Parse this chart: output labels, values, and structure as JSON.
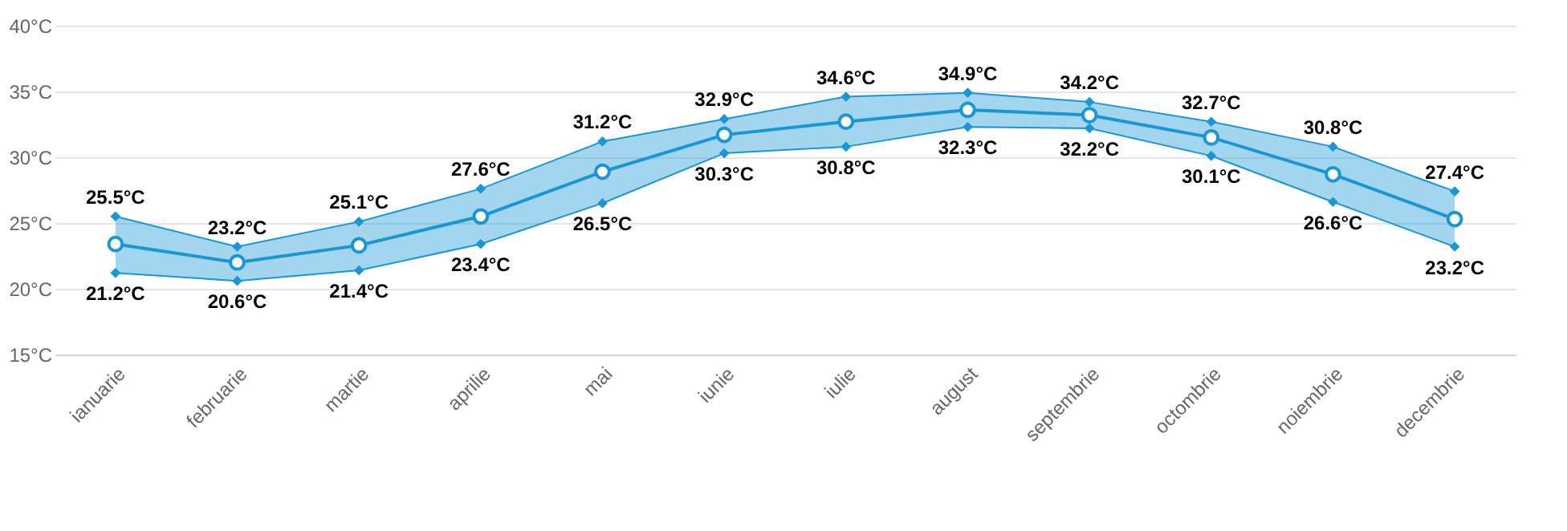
{
  "chart_data": {
    "type": "line",
    "categories": [
      "ianuarie",
      "februarie",
      "martie",
      "aprilie",
      "mai",
      "iunie",
      "iulie",
      "august",
      "septembrie",
      "octombrie",
      "noiembrie",
      "decembrie"
    ],
    "series": [
      {
        "color": "#1a96d4",
        "marker": "diamond",
        "values": [
          25.5,
          23.2,
          25.1,
          27.6,
          31.2,
          32.9,
          34.6,
          34.9,
          34.2,
          32.7,
          30.8,
          27.4
        ],
        "value_labels": [
          "25.5°C",
          "23.2°C",
          "25.1°C",
          "27.6°C",
          "31.2°C",
          "32.9°C",
          "34.6°C",
          "34.9°C",
          "34.2°C",
          "32.7°C",
          "30.8°C",
          "27.4°C"
        ]
      },
      {
        "color": "#1a96d4",
        "marker": "diamond",
        "values": [
          21.2,
          20.6,
          21.4,
          23.4,
          26.5,
          30.3,
          30.8,
          32.3,
          32.2,
          30.1,
          26.6,
          23.2
        ],
        "value_labels": [
          "21.2°C",
          "20.6°C",
          "21.4°C",
          "23.4°C",
          "26.5°C",
          "30.3°C",
          "30.8°C",
          "32.3°C",
          "32.2°C",
          "30.1°C",
          "26.6°C",
          "23.2°C"
        ]
      },
      {
        "color": "#1a96d4",
        "marker": "circle",
        "values": [
          23.4,
          22.0,
          23.3,
          25.5,
          28.9,
          31.7,
          32.7,
          33.6,
          33.2,
          31.5,
          28.7,
          25.3
        ],
        "lower": [
          21.2,
          20.6,
          21.4,
          23.4,
          26.5,
          30.3,
          30.8,
          32.3,
          32.2,
          30.1,
          26.6,
          23.2
        ],
        "upper": [
          25.5,
          23.2,
          25.1,
          27.6,
          31.2,
          32.9,
          34.6,
          34.9,
          34.2,
          32.7,
          30.8,
          27.4
        ]
      }
    ],
    "ylim": [
      15,
      40
    ],
    "yticks": [
      {
        "value": 15,
        "label": "15°C"
      },
      {
        "value": 20,
        "label": "20°C"
      },
      {
        "value": 25,
        "label": "25°C"
      },
      {
        "value": 30,
        "label": "30°C"
      },
      {
        "value": 35,
        "label": "35°C"
      },
      {
        "value": 40,
        "label": "40°C"
      }
    ],
    "grid": "y",
    "line_style": "solid"
  }
}
